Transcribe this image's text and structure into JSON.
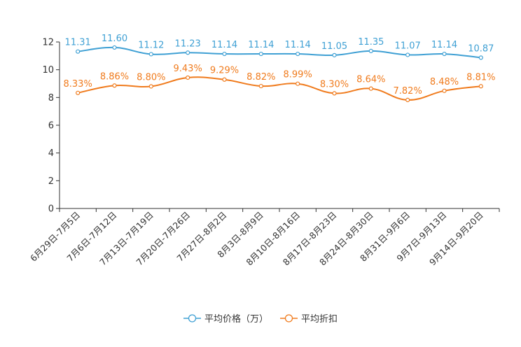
{
  "chart_data": {
    "type": "line",
    "title": "",
    "xlabel": "",
    "ylabel": "",
    "ylim": [
      0,
      12
    ],
    "yticks": [
      0,
      2,
      4,
      6,
      8,
      10,
      12
    ],
    "grid": false,
    "legend_position": "bottom-center",
    "categories": [
      "6月29日-7月5日",
      "7月6日-7月12日",
      "7月13日-7月19日",
      "7月20日-7月26日",
      "7月27日-8月2日",
      "8月3日-8月9日",
      "8月10日-8月16日",
      "8月17日-8月23日",
      "8月24日-8月30日",
      "8月31日-9月6日",
      "9月7日-9月13日",
      "9月14日-9月20日"
    ],
    "series": [
      {
        "name": "平均价格（万）",
        "color": "#3fa0d4",
        "values": [
          11.31,
          11.6,
          11.12,
          11.23,
          11.14,
          11.14,
          11.14,
          11.05,
          11.35,
          11.07,
          11.14,
          10.87
        ],
        "labels": [
          "11.31",
          "11.60",
          "11.12",
          "11.23",
          "11.14",
          "11.14",
          "11.14",
          "11.05",
          "11.35",
          "11.07",
          "11.14",
          "10.87"
        ]
      },
      {
        "name": "平均折扣",
        "color": "#f07b1d",
        "values": [
          8.33,
          8.86,
          8.8,
          9.43,
          9.29,
          8.82,
          8.99,
          8.3,
          8.64,
          7.82,
          8.48,
          8.81
        ],
        "labels": [
          "8.33%",
          "8.86%",
          "8.80%",
          "9.43%",
          "9.29%",
          "8.82%",
          "8.99%",
          "8.30%",
          "8.64%",
          "7.82%",
          "8.48%",
          "8.81%"
        ]
      }
    ]
  }
}
